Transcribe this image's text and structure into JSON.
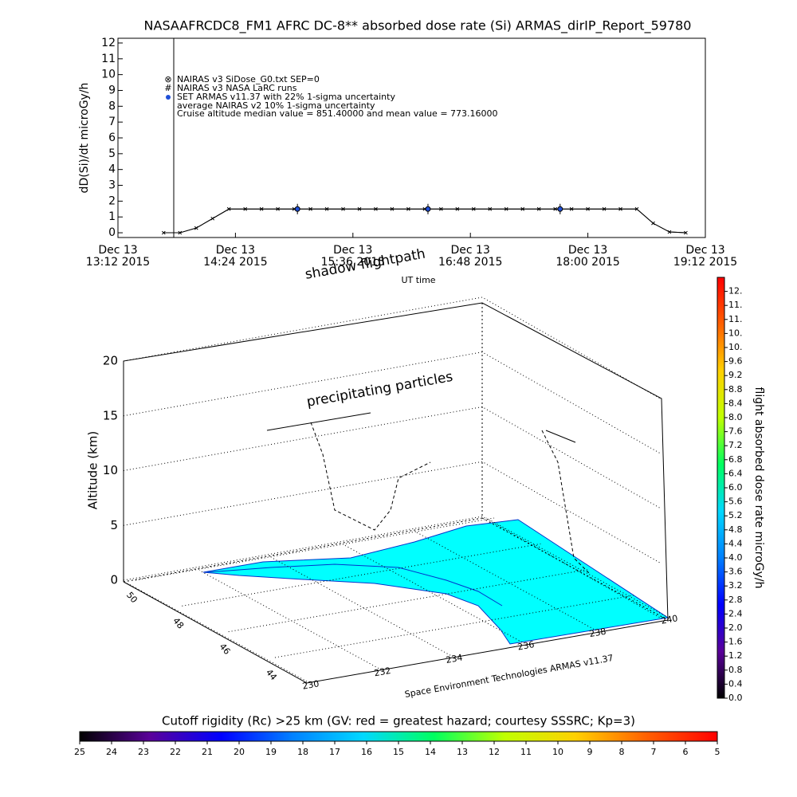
{
  "chart_data": [
    {
      "type": "line",
      "title": "NASAAFRCDC8_FM1 AFRC DC-8** absorbed dose rate (Si) ARMAS_dirIP_Report_59780",
      "ylabel": "dD(Si)/dt microGy/h",
      "xlabel": "UT time",
      "xlim": [
        "2015-12-13 13:12",
        "2015-12-13 19:12"
      ],
      "xticks": [
        {
          "value": "2015-12-13 13:12",
          "label": [
            "Dec 13",
            "13:12 2015"
          ]
        },
        {
          "value": "2015-12-13 14:24",
          "label": [
            "Dec 13",
            "14:24 2015"
          ]
        },
        {
          "value": "2015-12-13 15:36",
          "label": [
            "Dec 13",
            "15:36 2015"
          ]
        },
        {
          "value": "2015-12-13 16:48",
          "label": [
            "Dec 13",
            "16:48 2015"
          ]
        },
        {
          "value": "2015-12-13 18:00",
          "label": [
            "Dec 13",
            "18:00 2015"
          ]
        },
        {
          "value": "2015-12-13 19:12",
          "label": [
            "Dec 13",
            "19:12 2015"
          ]
        }
      ],
      "ylim": [
        -0.3,
        12.3
      ],
      "yticks": [
        0,
        1,
        2,
        3,
        4,
        5,
        6,
        7,
        8,
        9,
        10,
        11,
        12
      ],
      "x": [
        "2015-12-13 13:40",
        "2015-12-13 13:50",
        "2015-12-13 14:00",
        "2015-12-13 14:10",
        "2015-12-13 14:20",
        "2015-12-13 14:30",
        "2015-12-13 14:40",
        "2015-12-13 14:50",
        "2015-12-13 15:00",
        "2015-12-13 15:10",
        "2015-12-13 15:20",
        "2015-12-13 15:30",
        "2015-12-13 15:40",
        "2015-12-13 15:50",
        "2015-12-13 16:00",
        "2015-12-13 16:10",
        "2015-12-13 16:20",
        "2015-12-13 16:30",
        "2015-12-13 16:40",
        "2015-12-13 16:50",
        "2015-12-13 17:00",
        "2015-12-13 17:10",
        "2015-12-13 17:20",
        "2015-12-13 17:30",
        "2015-12-13 17:40",
        "2015-12-13 17:50",
        "2015-12-13 18:00",
        "2015-12-13 18:10",
        "2015-12-13 18:20",
        "2015-12-13 18:30",
        "2015-12-13 18:40",
        "2015-12-13 18:50",
        "2015-12-13 19:00"
      ],
      "series": [
        {
          "name": "NAIRAS v3 SiDose_G0.txt SEP=0",
          "color": "#000000",
          "values": [
            0,
            0,
            0.3,
            0.9,
            1.5,
            1.5,
            1.5,
            1.5,
            1.5,
            1.5,
            1.5,
            1.5,
            1.5,
            1.5,
            1.5,
            1.5,
            1.5,
            1.5,
            1.5,
            1.5,
            1.5,
            1.5,
            1.5,
            1.5,
            1.5,
            1.5,
            1.5,
            1.5,
            1.5,
            1.5,
            0.6,
            0.05,
            0
          ]
        },
        {
          "name": "NAIRAS v3 NASA LaRC runs",
          "color": "#000000",
          "values": [
            0,
            0,
            0.3,
            0.9,
            1.5,
            1.5,
            1.5,
            1.5,
            1.5,
            1.5,
            1.5,
            1.5,
            1.5,
            1.5,
            1.5,
            1.5,
            1.5,
            1.5,
            1.5,
            1.5,
            1.5,
            1.5,
            1.5,
            1.5,
            1.5,
            1.5,
            1.5,
            1.5,
            1.5,
            1.5,
            0.6,
            0.05,
            0
          ]
        },
        {
          "name": "SET ARMAS v11.37 with 22% 1-sigma uncertainty",
          "color": "#1f4fd8",
          "x": [
            "2015-12-13 15:02",
            "2015-12-13 16:22",
            "2015-12-13 17:43"
          ],
          "values": [
            1.5,
            1.5,
            1.5
          ],
          "errors": [
            0.33,
            0.33,
            0.33
          ]
        }
      ],
      "annotations": [
        "average NAIRAS v2 10% 1-sigma uncertainty",
        "Cruise altitude median value = 851.40000 and mean value = 773.16000"
      ]
    },
    {
      "type": "surface3d",
      "labels": [
        "shadow flightpath",
        "precipitating particles"
      ],
      "zlabel": "Altitude (km)",
      "zticks": [
        0,
        5,
        10,
        15,
        20
      ],
      "latticks": [
        50,
        48,
        46,
        44
      ],
      "latlim": [
        50,
        44
      ],
      "lonticks": [
        230,
        232,
        234,
        236,
        238,
        240
      ],
      "lonlim": [
        230,
        240
      ],
      "credit": "Space Environment Technologies ARMAS v11.37",
      "color": "#00ffff"
    },
    {
      "type": "colorbar",
      "label": "flight absorbed dose rate microGy/h",
      "lim": [
        0,
        12
      ],
      "colors": [
        "#000000",
        "#5a009a",
        "#0000ff",
        "#0080ff",
        "#00d8ff",
        "#00ff60",
        "#c0ff00",
        "#ffd000",
        "#ff6000",
        "#ff0000"
      ],
      "ticks": [
        {
          "value": 0,
          "label": "0.0"
        },
        0.4,
        0.8,
        1.2,
        1.6,
        {
          "value": 2,
          "label": "2.0"
        },
        2.4,
        2.8,
        3.2,
        3.6,
        {
          "value": 4,
          "label": "4.0"
        },
        4.4,
        4.8,
        5.2,
        5.6,
        {
          "value": 6,
          "label": "6.0"
        },
        6.4,
        6.8,
        7.2,
        7.6,
        {
          "value": 8,
          "label": "8.0"
        },
        8.4,
        8.8,
        9.2,
        9.6,
        {
          "value": 10,
          "label": "10."
        },
        {
          "value": 10.4,
          "label": "10."
        },
        {
          "value": 10.8,
          "label": "11."
        },
        {
          "value": 11.2,
          "label": "11."
        },
        {
          "value": 11.6,
          "label": "12."
        }
      ]
    },
    {
      "type": "colorbar_h",
      "title": "Cutoff rigidity (Rc) >25 km (GV: red = greatest hazard; courtesy SSSRC; Kp=3)",
      "lim": [
        25,
        5
      ],
      "colors": [
        "#000000",
        "#5a009a",
        "#0000ff",
        "#0080ff",
        "#00d8ff",
        "#00ff60",
        "#c0ff00",
        "#ffd000",
        "#ff6000",
        "#ff0000"
      ],
      "ticks": [
        25,
        24,
        23,
        22,
        21,
        20,
        19,
        18,
        17,
        16,
        15,
        14,
        13,
        12,
        11,
        10,
        9,
        8,
        7,
        6,
        5
      ]
    }
  ]
}
